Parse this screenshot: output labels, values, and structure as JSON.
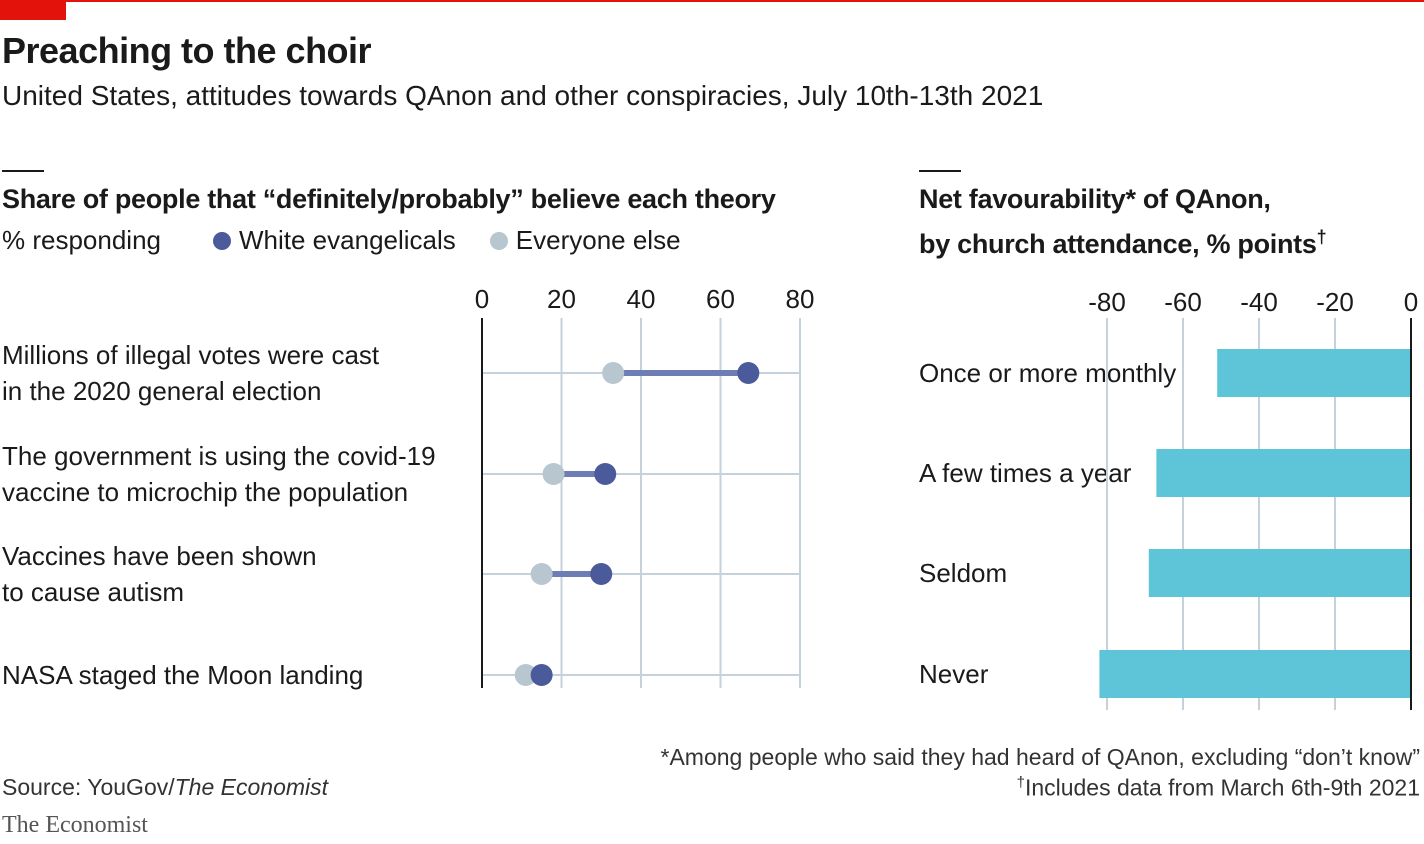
{
  "header": {
    "title": "Preaching to the choir",
    "subtitle": "United States, attitudes towards QAnon and other conspiracies, July 10th-13th 2021"
  },
  "left_panel": {
    "title": "Share of people that “definitely/probably” believe each theory",
    "unit_label": "% responding"
  },
  "right_panel": {
    "title_line1": "Net favourability* of QAnon,",
    "title_line2": "by church attendance, % points",
    "title_mark": "†"
  },
  "colors": {
    "white_evangelicals": "#4a5a9a",
    "everyone_else": "#b8c6d0",
    "connector": "#6e7db3",
    "bar": "#5ec4d8",
    "grid": "#c5d2dc"
  },
  "chart_data": [
    {
      "type": "dumbbell",
      "title": "Share of people that “definitely/probably” believe each theory",
      "ylabel": "% responding",
      "xlim": [
        0,
        80
      ],
      "xticks": [
        "0",
        "20",
        "40",
        "60",
        "80"
      ],
      "grid": true,
      "legend_position": "top",
      "categories": [
        [
          "Millions of illegal votes were cast",
          "in the 2020 general election"
        ],
        [
          "The government is using the covid-19",
          "vaccine to microchip the population"
        ],
        [
          "Vaccines have been shown",
          "to cause autism"
        ],
        [
          "NASA staged the Moon landing"
        ]
      ],
      "series": [
        {
          "name": "White evangelicals",
          "values": [
            67,
            31,
            30,
            15
          ]
        },
        {
          "name": "Everyone else",
          "values": [
            33,
            18,
            15,
            11
          ]
        }
      ]
    },
    {
      "type": "bar",
      "orientation": "horizontal",
      "title": "Net favourability* of QAnon, by church attendance, % points†",
      "xlim": [
        -80,
        0
      ],
      "xticks": [
        "-80",
        "-60",
        "-40",
        "-20",
        "0"
      ],
      "grid": true,
      "categories": [
        "Once or more monthly",
        "A few times a year",
        "Seldom",
        "Never"
      ],
      "values": [
        -51,
        -67,
        -69,
        -82
      ]
    }
  ],
  "footnotes": {
    "note1": "*Among people who said they had heard of QAnon, excluding “don’t know”",
    "note2_mark": "†",
    "note2": "Includes data from March 6th-9th 2021"
  },
  "source": {
    "prefix": "Source: YouGov/",
    "italic": "The Economist"
  },
  "brand": "The Economist"
}
